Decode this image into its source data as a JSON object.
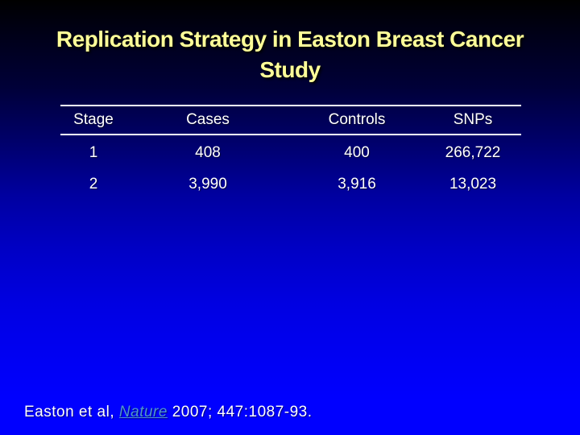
{
  "slide": {
    "title": {
      "line1": "Replication Strategy in Easton Breast Cancer",
      "line2": "Study"
    }
  },
  "table": {
    "headers": [
      "Stage",
      "Cases",
      "Controls",
      "SNPs"
    ],
    "rows": [
      [
        "1",
        "408",
        "400",
        "266,722"
      ],
      [
        "2",
        "3,990",
        "3,916",
        "13,023"
      ]
    ]
  },
  "citation": {
    "prefix": "Easton et al, ",
    "journal": "Nature",
    "suffix": " 2007; 447:1087-93."
  },
  "colors": {
    "title_text": "#FFFF99",
    "body_text": "#FFFFFF",
    "link_text": "#4E95CE",
    "rule": "#FFFFFF",
    "background_top": "#000000",
    "background_bottom": "#0000FF"
  }
}
